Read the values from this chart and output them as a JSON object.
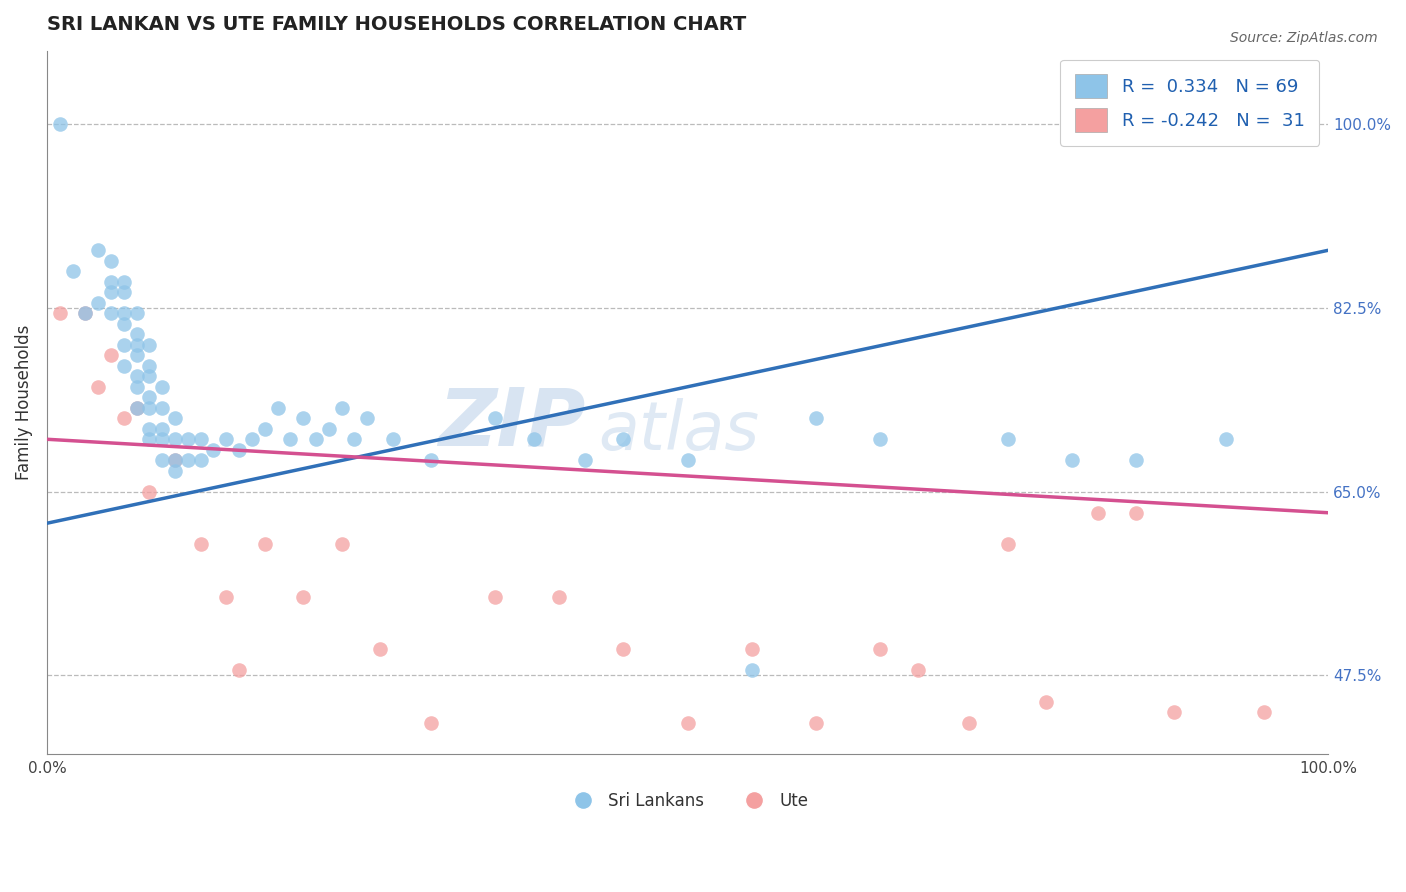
{
  "title": "SRI LANKAN VS UTE FAMILY HOUSEHOLDS CORRELATION CHART",
  "source_text": "Source: ZipAtlas.com",
  "ylabel": "Family Households",
  "right_yticks": [
    47.5,
    65.0,
    82.5,
    100.0
  ],
  "xlim": [
    0.0,
    100.0
  ],
  "ylim": [
    40.0,
    107.0
  ],
  "blue_r": 0.334,
  "blue_n": 69,
  "pink_r": -0.242,
  "pink_n": 31,
  "blue_color": "#8ec4e8",
  "pink_color": "#f4a0a0",
  "blue_line_color": "#3070b8",
  "pink_line_color": "#d45090",
  "watermark_zip": "ZIP",
  "watermark_atlas": "atlas",
  "legend_label_blue": "Sri Lankans",
  "legend_label_pink": "Ute",
  "blue_scatter_x": [
    1,
    2,
    3,
    4,
    4,
    5,
    5,
    5,
    5,
    6,
    6,
    6,
    6,
    6,
    6,
    7,
    7,
    7,
    7,
    7,
    7,
    7,
    8,
    8,
    8,
    8,
    8,
    8,
    8,
    9,
    9,
    9,
    9,
    9,
    10,
    10,
    10,
    10,
    11,
    11,
    12,
    12,
    13,
    14,
    15,
    16,
    17,
    18,
    19,
    20,
    21,
    22,
    23,
    24,
    25,
    27,
    30,
    35,
    38,
    42,
    45,
    50,
    55,
    60,
    65,
    75,
    80,
    85,
    92
  ],
  "blue_scatter_y": [
    100,
    86,
    82,
    83,
    88,
    82,
    84,
    85,
    87,
    77,
    79,
    81,
    82,
    84,
    85,
    73,
    75,
    76,
    78,
    79,
    80,
    82,
    70,
    71,
    73,
    74,
    76,
    77,
    79,
    68,
    70,
    71,
    73,
    75,
    67,
    68,
    70,
    72,
    68,
    70,
    68,
    70,
    69,
    70,
    69,
    70,
    71,
    73,
    70,
    72,
    70,
    71,
    73,
    70,
    72,
    70,
    68,
    72,
    70,
    68,
    70,
    68,
    48,
    72,
    70,
    70,
    68,
    68,
    70
  ],
  "pink_scatter_x": [
    1,
    3,
    4,
    5,
    6,
    7,
    8,
    10,
    12,
    14,
    15,
    17,
    20,
    23,
    26,
    30,
    35,
    40,
    45,
    50,
    55,
    60,
    65,
    68,
    72,
    75,
    78,
    82,
    85,
    88,
    95
  ],
  "pink_scatter_y": [
    82,
    82,
    75,
    78,
    72,
    73,
    65,
    68,
    60,
    55,
    48,
    60,
    55,
    60,
    50,
    43,
    55,
    55,
    50,
    43,
    50,
    43,
    50,
    48,
    43,
    60,
    45,
    63,
    63,
    44,
    44
  ],
  "blue_trend_x": [
    0,
    100
  ],
  "blue_trend_y": [
    62.0,
    88.0
  ],
  "pink_trend_x": [
    0,
    100
  ],
  "pink_trend_y": [
    70.0,
    63.0
  ]
}
